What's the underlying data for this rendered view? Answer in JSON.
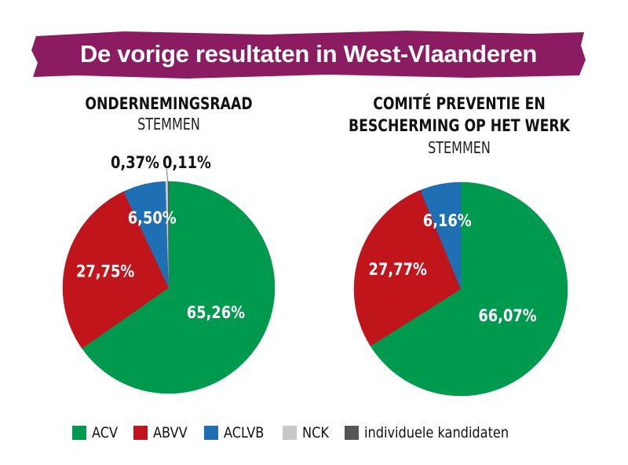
{
  "title": "De vorige resultaten in West-Vlaanderen",
  "colors": {
    "banner": "#8b1c62",
    "ACV": "#009a4e",
    "ABVV": "#c0151b",
    "ACLVB": "#1f6fb5",
    "NCK": "#c8c8c8",
    "individuele kandidaten": "#555555"
  },
  "legend": [
    "ACV",
    "ABVV",
    "ACLVB",
    "NCK",
    "individuele kandidaten"
  ],
  "chart_data": [
    {
      "type": "pie",
      "title": "ONDERNEMINGSRAAD",
      "subtitle": "STEMMEN",
      "slices": [
        {
          "name": "ACV",
          "value": 65.26,
          "label": "65,26%"
        },
        {
          "name": "ABVV",
          "value": 27.75,
          "label": "27,75%"
        },
        {
          "name": "ACLVB",
          "value": 6.5,
          "label": "6,50%"
        },
        {
          "name": "NCK",
          "value": 0.37,
          "label": "0,37%"
        },
        {
          "name": "individuele kandidaten",
          "value": 0.11,
          "label": "0,11%"
        }
      ]
    },
    {
      "type": "pie",
      "title_lines": [
        "COMITÉ PREVENTIE EN",
        "BESCHERMING OP HET WERK"
      ],
      "subtitle": "STEMMEN",
      "slices": [
        {
          "name": "ACV",
          "value": 66.07,
          "label": "66,07%"
        },
        {
          "name": "ABVV",
          "value": 27.77,
          "label": "27,77%"
        },
        {
          "name": "ACLVB",
          "value": 6.16,
          "label": "6,16%"
        }
      ]
    }
  ]
}
